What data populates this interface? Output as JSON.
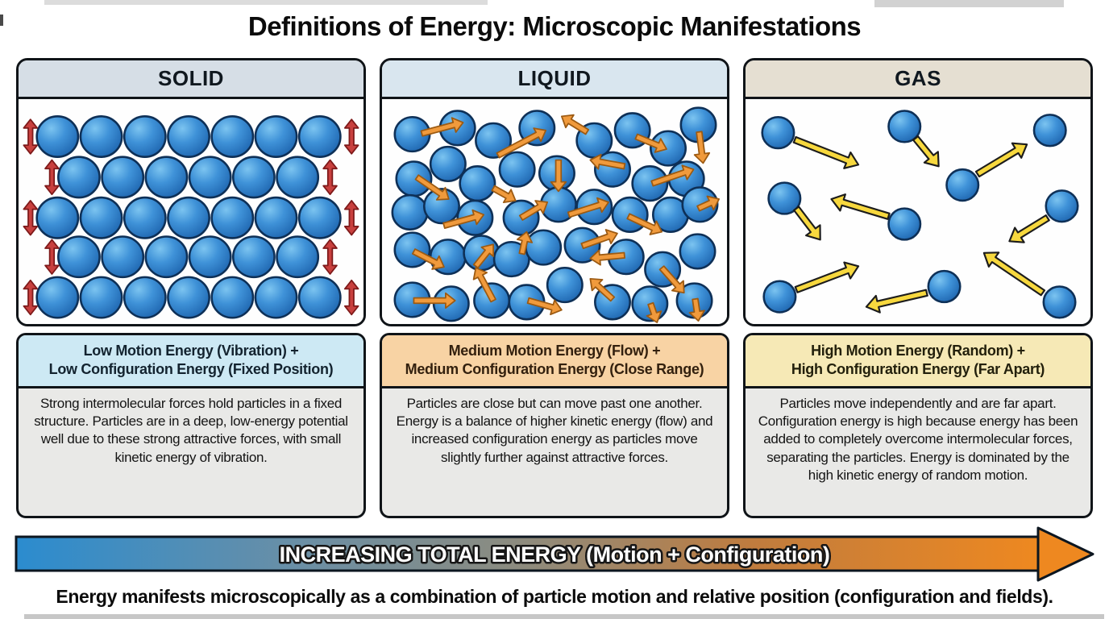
{
  "title": "Definitions of Energy: Microscopic Manifestations",
  "caption": "Energy manifests microscopically as a combination of particle motion and relative position (configuration and fields).",
  "energy_arrow": {
    "label": "INCREASING TOTAL ENERGY (Motion + Configuration)",
    "gradient": [
      [
        0,
        "#2b8ccf"
      ],
      [
        0.28,
        "#6b8fa5"
      ],
      [
        0.5,
        "#8e8b7d"
      ],
      [
        0.72,
        "#c07c3e"
      ],
      [
        1,
        "#ee8820"
      ]
    ],
    "border": "#0c1620",
    "label_fill": "#ffffff",
    "label_outline": "#161616"
  },
  "colors": {
    "sphere_gradient": [
      "#7cc4f0",
      "#3f92d8",
      "#1d64ae"
    ],
    "sphere_outline": "#0e3057",
    "panel_border": "#101418"
  },
  "panels": {
    "solid": {
      "name": "SOLID",
      "header_bg": "#d6dee6",
      "particle_r": 26,
      "arrow_fill": "#c8403e",
      "arrow_outline": "#7e1a1a",
      "particles": [
        [
          49,
          48
        ],
        [
          104,
          48
        ],
        [
          159,
          48
        ],
        [
          214,
          48
        ],
        [
          269,
          48
        ],
        [
          324,
          48
        ],
        [
          379,
          48
        ],
        [
          76,
          100
        ],
        [
          131,
          100
        ],
        [
          186,
          100
        ],
        [
          241,
          100
        ],
        [
          296,
          100
        ],
        [
          351,
          100
        ],
        [
          49,
          152
        ],
        [
          104,
          152
        ],
        [
          159,
          152
        ],
        [
          214,
          152
        ],
        [
          269,
          152
        ],
        [
          324,
          152
        ],
        [
          379,
          152
        ],
        [
          76,
          202
        ],
        [
          131,
          202
        ],
        [
          186,
          202
        ],
        [
          241,
          202
        ],
        [
          296,
          202
        ],
        [
          351,
          202
        ],
        [
          49,
          254
        ],
        [
          104,
          254
        ],
        [
          159,
          254
        ],
        [
          214,
          254
        ],
        [
          269,
          254
        ],
        [
          324,
          254
        ],
        [
          379,
          254
        ]
      ],
      "arrows": [
        [
          15,
          26,
          15,
          70
        ],
        [
          42,
          78,
          42,
          122
        ],
        [
          15,
          130,
          15,
          174
        ],
        [
          42,
          180,
          42,
          224
        ],
        [
          15,
          232,
          15,
          276
        ],
        [
          419,
          26,
          419,
          70
        ],
        [
          392,
          78,
          392,
          122
        ],
        [
          419,
          130,
          419,
          174
        ],
        [
          392,
          180,
          392,
          224
        ],
        [
          419,
          232,
          419,
          276
        ]
      ],
      "info": {
        "header_bg": "#cde9f4",
        "header_fg": "#13232f",
        "title": "Low Motion Energy (Vibration) +\nLow Configuration Energy (Fixed Position)",
        "body": "Strong intermolecular forces hold particles in a fixed structure. Particles are in a deep, low-energy potential well due to these strong attractive forces, with small kinetic energy of vibration."
      }
    },
    "liquid": {
      "name": "LIQUID",
      "header_bg": "#d9e6ef",
      "particle_r": 22,
      "arrow_fill": "#f09a3c",
      "arrow_outline": "#9c5a12",
      "particles": [
        [
          38,
          45
        ],
        [
          95,
          37
        ],
        [
          140,
          53
        ],
        [
          195,
          37
        ],
        [
          267,
          53
        ],
        [
          315,
          40
        ],
        [
          360,
          63
        ],
        [
          398,
          33
        ],
        [
          40,
          102
        ],
        [
          83,
          83
        ],
        [
          120,
          108
        ],
        [
          170,
          90
        ],
        [
          220,
          95
        ],
        [
          290,
          90
        ],
        [
          337,
          108
        ],
        [
          383,
          102
        ],
        [
          35,
          145
        ],
        [
          75,
          137
        ],
        [
          117,
          152
        ],
        [
          175,
          152
        ],
        [
          222,
          135
        ],
        [
          267,
          138
        ],
        [
          312,
          148
        ],
        [
          363,
          148
        ],
        [
          400,
          135
        ],
        [
          38,
          193
        ],
        [
          83,
          202
        ],
        [
          125,
          197
        ],
        [
          163,
          205
        ],
        [
          203,
          190
        ],
        [
          252,
          187
        ],
        [
          307,
          202
        ],
        [
          353,
          218
        ],
        [
          397,
          195
        ],
        [
          38,
          257
        ],
        [
          87,
          262
        ],
        [
          138,
          258
        ],
        [
          182,
          260
        ],
        [
          230,
          238
        ],
        [
          290,
          260
        ],
        [
          337,
          262
        ],
        [
          393,
          258
        ]
      ],
      "arrows": [
        [
          50,
          44,
          102,
          30
        ],
        [
          146,
          72,
          206,
          40
        ],
        [
          258,
          42,
          226,
          22
        ],
        [
          320,
          48,
          358,
          64
        ],
        [
          399,
          42,
          404,
          82
        ],
        [
          44,
          100,
          84,
          128
        ],
        [
          140,
          114,
          168,
          130
        ],
        [
          222,
          78,
          222,
          118
        ],
        [
          305,
          86,
          262,
          78
        ],
        [
          340,
          108,
          392,
          90
        ],
        [
          78,
          162,
          128,
          148
        ],
        [
          175,
          152,
          208,
          132
        ],
        [
          235,
          148,
          285,
          132
        ],
        [
          310,
          150,
          352,
          170
        ],
        [
          398,
          140,
          424,
          128
        ],
        [
          40,
          195,
          78,
          215
        ],
        [
          118,
          214,
          140,
          186
        ],
        [
          176,
          198,
          182,
          170
        ],
        [
          252,
          188,
          296,
          172
        ],
        [
          305,
          200,
          262,
          204
        ],
        [
          352,
          216,
          380,
          248
        ],
        [
          40,
          258,
          92,
          258
        ],
        [
          140,
          258,
          118,
          216
        ],
        [
          184,
          258,
          226,
          270
        ],
        [
          290,
          256,
          262,
          230
        ],
        [
          338,
          262,
          346,
          286
        ],
        [
          394,
          256,
          398,
          284
        ]
      ],
      "info": {
        "header_bg": "#f8d3a4",
        "header_fg": "#33200e",
        "title": "Medium Motion Energy (Flow) +\nMedium Configuration Energy (Close Range)",
        "body": "Particles are close but can move past one another. Energy is a balance of higher kinetic energy (flow) and increased configuration energy as particles move slightly further against attractive forces."
      }
    },
    "gas": {
      "name": "GAS",
      "header_bg": "#e5dfd2",
      "particle_r": 20,
      "arrow_fill": "#f7d83e",
      "arrow_outline": "#1c1c1c",
      "particles": [
        [
          41,
          43
        ],
        [
          200,
          35
        ],
        [
          383,
          40
        ],
        [
          273,
          110
        ],
        [
          49,
          127
        ],
        [
          200,
          160
        ],
        [
          398,
          137
        ],
        [
          43,
          253
        ],
        [
          250,
          240
        ],
        [
          395,
          260
        ]
      ],
      "arrows": [
        [
          62,
          52,
          142,
          84
        ],
        [
          214,
          50,
          243,
          86
        ],
        [
          292,
          96,
          354,
          58
        ],
        [
          64,
          140,
          94,
          180
        ],
        [
          180,
          150,
          108,
          128
        ],
        [
          380,
          152,
          332,
          182
        ],
        [
          64,
          244,
          142,
          214
        ],
        [
          228,
          248,
          152,
          266
        ],
        [
          374,
          248,
          300,
          197
        ]
      ],
      "info": {
        "header_bg": "#f6e9b6",
        "header_fg": "#23200c",
        "title": "High Motion Energy (Random) +\nHigh Configuration Energy (Far Apart)",
        "body": "Particles move independently and are far apart. Configuration energy is high because energy has been added to completely overcome intermolecular forces, separating the particles. Energy is dominated by the high kinetic energy of random motion."
      }
    }
  }
}
